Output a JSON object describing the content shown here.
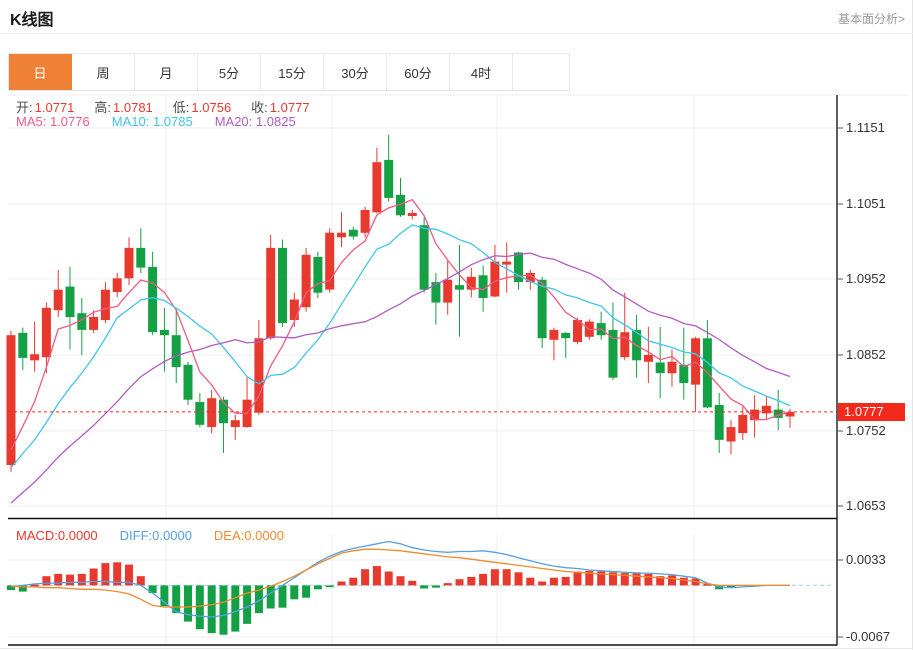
{
  "page": {
    "title": "K线图",
    "link_label": "基本面分析>"
  },
  "tabs": {
    "items": [
      "日",
      "周",
      "月",
      "5分",
      "15分",
      "30分",
      "60分",
      "4时"
    ],
    "active_index": 0
  },
  "ohlc_bar": {
    "open_label": "开:",
    "open": "1.0771",
    "high_label": "高:",
    "high": "1.0781",
    "low_label": "低:",
    "low": "1.0756",
    "close_label": "收:",
    "close": "1.0777"
  },
  "ma_bar": {
    "ma5_label": "MA5:",
    "ma5": "1.0776",
    "ma10_label": "MA10:",
    "ma10": "1.0785",
    "ma20_label": "MA20:",
    "ma20": "1.0825"
  },
  "macd_bar": {
    "macd_label": "MACD:",
    "macd": "0.0000",
    "diff_label": "DIFF:",
    "diff": "0.0000",
    "dea_label": "DEA:",
    "dea": "0.0000"
  },
  "price_axis": {
    "labels": [
      "1.1151",
      "1.1051",
      "1.0952",
      "1.0852",
      "1.0752",
      "1.0653"
    ],
    "label_values": [
      1.1151,
      1.1051,
      1.0952,
      1.0852,
      1.0752,
      1.0653
    ],
    "current_price_badge": "1.0777"
  },
  "macd_axis": {
    "labels": [
      "0.0033",
      "-0.0067"
    ],
    "label_values": [
      0.0033,
      -0.0067
    ]
  },
  "colors": {
    "accent": "#ee8135",
    "up_red": "#e8392e",
    "down_green": "#14a145",
    "price_line_red": "#f3291b",
    "ma5_pink": "#f05a82",
    "ma10_cyan": "#3ec6e8",
    "ma20_purple": "#b35bc4",
    "diff_blue": "#55a0e3",
    "dea_orange": "#f08a2a",
    "grid": "#e9eef4",
    "zero_dash_blue": "#b5dcee",
    "axis_dark": "#2b2b2b",
    "label_gray": "#4a4a4a",
    "link_gray": "#999999"
  },
  "chart_data": {
    "type": "candlestick",
    "timeframe": "日",
    "title": "K线图",
    "price_axis_ticks": [
      1.1151,
      1.1051,
      1.0952,
      1.0852,
      1.0752,
      1.0653
    ],
    "current_price_line": 1.0777,
    "ohlc_last": {
      "open": 1.0771,
      "high": 1.0781,
      "low": 1.0756,
      "close": 1.0777
    },
    "ma_readout": {
      "ma5": 1.0776,
      "ma10": 1.0785,
      "ma20": 1.0825
    },
    "grid_vertical_x": [
      166,
      332,
      497,
      694
    ],
    "candles_ohlc": [
      [
        1.0707,
        1.0884,
        1.0698,
        1.0878
      ],
      [
        1.0881,
        1.0888,
        1.0832,
        1.0848
      ],
      [
        1.0845,
        1.0896,
        1.083,
        1.0853
      ],
      [
        1.0849,
        1.0921,
        1.0828,
        1.0914
      ],
      [
        1.0911,
        1.0964,
        1.0902,
        1.0938
      ],
      [
        1.0942,
        1.0968,
        1.0859,
        1.0902
      ],
      [
        1.0907,
        1.0927,
        1.0852,
        1.0885
      ],
      [
        1.0885,
        1.0911,
        1.0881,
        1.0902
      ],
      [
        1.0898,
        1.0948,
        1.0894,
        1.0938
      ],
      [
        1.0935,
        1.096,
        1.0928,
        1.0953
      ],
      [
        1.0953,
        1.1007,
        1.0944,
        1.0993
      ],
      [
        1.0993,
        1.1019,
        1.096,
        1.0967
      ],
      [
        1.0968,
        1.0988,
        1.0878,
        1.0882
      ],
      [
        1.0885,
        1.0914,
        1.083,
        1.0878
      ],
      [
        1.0878,
        1.0911,
        1.0815,
        1.0836
      ],
      [
        1.0839,
        1.0843,
        1.0786,
        1.0793
      ],
      [
        1.079,
        1.0802,
        1.0757,
        1.076
      ],
      [
        1.0757,
        1.0806,
        1.0749,
        1.0795
      ],
      [
        1.0793,
        1.0797,
        1.0723,
        1.0762
      ],
      [
        1.0757,
        1.0773,
        1.074,
        1.0766
      ],
      [
        1.0757,
        1.0822,
        1.0756,
        1.0793
      ],
      [
        1.0776,
        1.0898,
        1.0773,
        1.0874
      ],
      [
        1.0874,
        1.101,
        1.0872,
        1.0993
      ],
      [
        1.0993,
        1.1004,
        1.0889,
        1.0894
      ],
      [
        1.0898,
        1.0934,
        1.0889,
        1.0925
      ],
      [
        1.0915,
        1.0993,
        1.0909,
        1.0984
      ],
      [
        1.0981,
        1.0988,
        1.0927,
        1.0934
      ],
      [
        1.0938,
        1.1019,
        1.0934,
        1.1013
      ],
      [
        1.1007,
        1.104,
        1.0994,
        1.1013
      ],
      [
        1.1017,
        1.1021,
        1.1004,
        1.1008
      ],
      [
        1.1013,
        1.1047,
        1.1007,
        1.1043
      ],
      [
        1.104,
        1.1125,
        1.1039,
        1.1106
      ],
      [
        1.1109,
        1.1142,
        1.1054,
        1.1059
      ],
      [
        1.1063,
        1.1085,
        1.1034,
        1.1036
      ],
      [
        1.1035,
        1.1043,
        1.1031,
        1.1039
      ],
      [
        1.1023,
        1.1033,
        1.0934,
        1.0938
      ],
      [
        1.0948,
        1.096,
        1.0892,
        1.0921
      ],
      [
        1.0921,
        1.0977,
        1.0905,
        1.0951
      ],
      [
        1.0944,
        1.0997,
        1.0876,
        1.0938
      ],
      [
        1.0938,
        1.0967,
        1.0928,
        1.0955
      ],
      [
        1.0957,
        1.097,
        1.0909,
        1.0927
      ],
      [
        1.0929,
        1.0997,
        1.0928,
        1.0975
      ],
      [
        1.0971,
        1.1,
        1.0934,
        1.0975
      ],
      [
        1.0987,
        1.0988,
        1.0938,
        1.0948
      ],
      [
        1.0948,
        1.0964,
        1.0938,
        1.096
      ],
      [
        1.0951,
        1.0955,
        1.0861,
        1.0874
      ],
      [
        1.0872,
        1.0888,
        1.0845,
        1.0885
      ],
      [
        1.0881,
        1.0882,
        1.0848,
        1.0874
      ],
      [
        1.0869,
        1.0901,
        1.0866,
        1.0898
      ],
      [
        1.0876,
        1.0899,
        1.0872,
        1.0896
      ],
      [
        1.0894,
        1.0909,
        1.0872,
        1.0878
      ],
      [
        1.0885,
        1.0921,
        1.0819,
        1.0822
      ],
      [
        1.0849,
        1.0934,
        1.0845,
        1.0882
      ],
      [
        1.0885,
        1.0905,
        1.0822,
        1.0845
      ],
      [
        1.0843,
        1.0889,
        1.0815,
        1.0852
      ],
      [
        1.0842,
        1.0889,
        1.0795,
        1.0828
      ],
      [
        1.0828,
        1.0859,
        1.081,
        1.0843
      ],
      [
        1.0839,
        1.0888,
        1.0793,
        1.0815
      ],
      [
        1.0813,
        1.0876,
        1.0777,
        1.0874
      ],
      [
        1.0874,
        1.0898,
        1.0782,
        1.0783
      ],
      [
        1.0786,
        1.0802,
        1.0723,
        1.074
      ],
      [
        1.0738,
        1.0766,
        1.0721,
        1.0757
      ],
      [
        1.0749,
        1.0784,
        1.074,
        1.0773
      ],
      [
        1.0766,
        1.0799,
        1.0743,
        1.078
      ],
      [
        1.0775,
        1.0797,
        1.0766,
        1.0785
      ],
      [
        1.078,
        1.0806,
        1.0753,
        1.0769
      ],
      [
        1.0771,
        1.0781,
        1.0756,
        1.0777
      ]
    ],
    "ma_periods": [
      5,
      10,
      20
    ],
    "prehistory_closes_estimate": [
      1.057,
      1.058,
      1.0592,
      1.0602,
      1.061,
      1.0618,
      1.0625,
      1.063,
      1.0636,
      1.0642,
      1.066,
      1.0674,
      1.0684,
      1.069,
      1.0692,
      1.0692,
      1.069,
      1.0688,
      1.0686
    ],
    "macd": {
      "ylim": [
        -0.0067,
        0.0033
      ],
      "histogram": [
        -0.0006,
        -0.0008,
        0.0001,
        0.0012,
        0.0015,
        0.0014,
        0.0015,
        0.0022,
        0.0029,
        0.003,
        0.0027,
        0.0012,
        -0.001,
        -0.0027,
        -0.0036,
        -0.0047,
        -0.0057,
        -0.0062,
        -0.0064,
        -0.006,
        -0.005,
        -0.0036,
        -0.003,
        -0.0029,
        -0.0018,
        -0.0016,
        -0.0005,
        -0.0002,
        0.0005,
        0.001,
        0.0021,
        0.0025,
        0.0018,
        0.0012,
        0.0006,
        -0.0004,
        -0.0003,
        0.0003,
        0.0008,
        0.0011,
        0.0015,
        0.0021,
        0.0021,
        0.0017,
        0.001,
        0.0005,
        0.001,
        0.0011,
        0.0018,
        0.0019,
        0.0018,
        0.0017,
        0.0016,
        0.0017,
        0.0015,
        0.0012,
        0.0013,
        0.001,
        0.0009,
        0.0002,
        -0.0005,
        -0.0003,
        0.0,
        0.0,
        0.0,
        0.0,
        0.0
      ],
      "diff": [
        -0.0002,
        0.0,
        0.0002,
        0.0003,
        0.0003,
        0.0004,
        0.0004,
        0.0005,
        0.0005,
        0.0004,
        0.0004,
        0.0,
        -0.001,
        -0.0022,
        -0.0034,
        -0.0038,
        -0.004,
        -0.0041,
        -0.0039,
        -0.0034,
        -0.0028,
        -0.002,
        -0.001,
        0.0,
        0.001,
        0.002,
        0.003,
        0.0038,
        0.0044,
        0.0048,
        0.0051,
        0.0054,
        0.0057,
        0.0054,
        0.0049,
        0.0046,
        0.0044,
        0.0043,
        0.0044,
        0.0044,
        0.0045,
        0.0043,
        0.004,
        0.0036,
        0.0032,
        0.0028,
        0.0025,
        0.0023,
        0.0022,
        0.002,
        0.0019,
        0.0018,
        0.0017,
        0.0016,
        0.0016,
        0.0015,
        0.0014,
        0.0012,
        0.001,
        0.0003,
        -0.0002,
        -0.0003,
        -0.0002,
        -0.0001,
        0.0,
        0.0,
        0.0
      ],
      "dea": [
        -0.0001,
        -0.0002,
        -0.0002,
        -0.0003,
        -0.0003,
        -0.0004,
        -0.0005,
        -0.0005,
        -0.0006,
        -0.0008,
        -0.0011,
        -0.0018,
        -0.0026,
        -0.0028,
        -0.0028,
        -0.0028,
        -0.0027,
        -0.0025,
        -0.0022,
        -0.0016,
        -0.001,
        -0.0006,
        -0.0001,
        0.0005,
        0.0012,
        0.002,
        0.0028,
        0.0035,
        0.0042,
        0.0045,
        0.0047,
        0.0047,
        0.0046,
        0.0045,
        0.0043,
        0.0041,
        0.0039,
        0.0037,
        0.0036,
        0.0034,
        0.0032,
        0.003,
        0.0028,
        0.0026,
        0.0024,
        0.0022,
        0.002,
        0.0018,
        0.0017,
        0.0016,
        0.0015,
        0.0014,
        0.0013,
        0.0012,
        0.0011,
        0.001,
        0.0009,
        0.0007,
        0.0005,
        0.0002,
        0.0,
        0.0,
        0.0,
        0.0,
        0.0,
        0.0,
        0.0
      ]
    }
  }
}
